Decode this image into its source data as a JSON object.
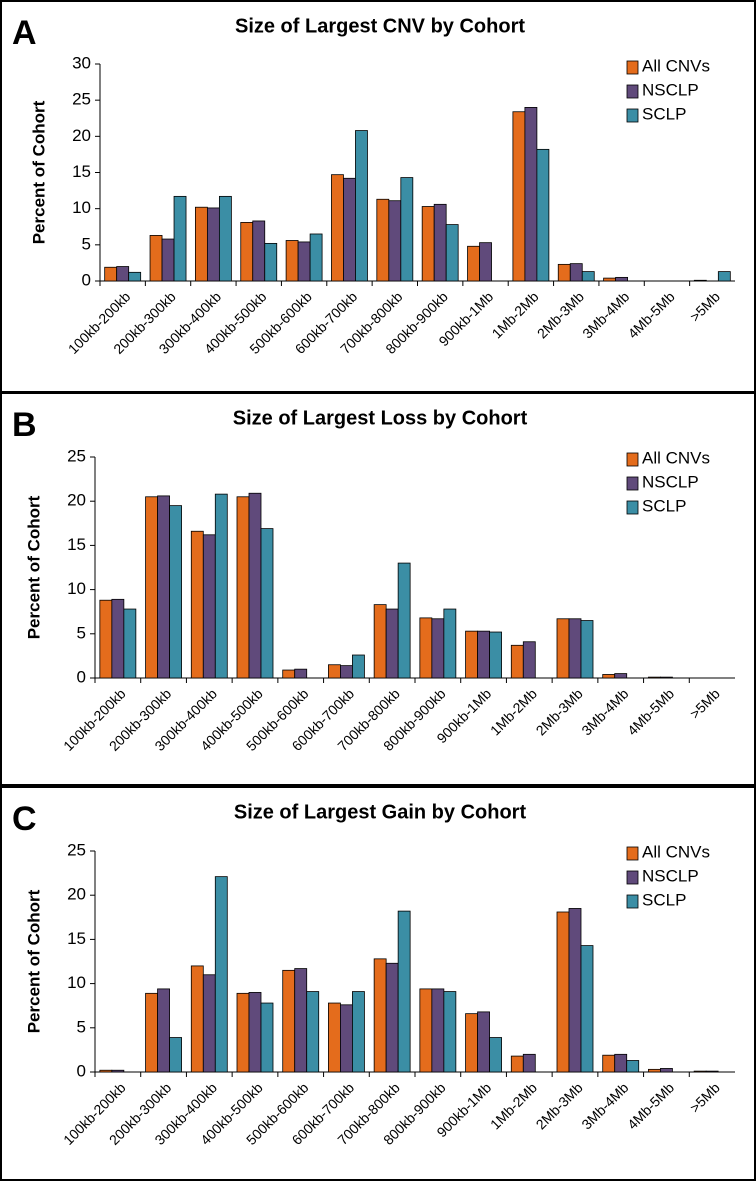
{
  "chart_data": [
    {
      "type": "bar",
      "panel_label": "A",
      "title": "Size of Largest CNV by Cohort",
      "ylabel": "Percent of Cohort",
      "categories": [
        "100kb-200kb",
        "200kb-300kb",
        "300kb-400kb",
        "400kb-500kb",
        "500kb-600kb",
        "600kb-700kb",
        "700kb-800kb",
        "800kb-900kb",
        "900kb-1Mb",
        "1Mb-2Mb",
        "2Mb-3Mb",
        "3Mb-4Mb",
        "4Mb-5Mb",
        ">5Mb"
      ],
      "series": [
        {
          "name": "All CNVs",
          "color": "#e46c1c",
          "values": [
            1.9,
            6.3,
            10.2,
            8.1,
            5.6,
            14.7,
            11.3,
            10.3,
            4.8,
            23.4,
            2.3,
            0.4,
            0,
            0.1
          ]
        },
        {
          "name": "NSCLP",
          "color": "#604a7b",
          "values": [
            2.0,
            5.8,
            10.1,
            8.3,
            5.4,
            14.2,
            11.1,
            10.6,
            5.3,
            24.0,
            2.4,
            0.5,
            0,
            0
          ]
        },
        {
          "name": "SCLP",
          "color": "#3b8ea5",
          "values": [
            1.2,
            11.7,
            11.7,
            5.2,
            6.5,
            20.8,
            14.3,
            7.8,
            0,
            18.2,
            1.3,
            0,
            0,
            1.3
          ]
        }
      ],
      "ylim": [
        0,
        30
      ],
      "yticks": [
        0,
        5,
        10,
        15,
        20,
        25,
        30
      ],
      "legend": "upper right"
    },
    {
      "type": "bar",
      "panel_label": "B",
      "title": "Size of Largest Loss by Cohort",
      "ylabel": "Percent of Cohort",
      "categories": [
        "100kb-200kb",
        "200kb-300kb",
        "300kb-400kb",
        "400kb-500kb",
        "500kb-600kb",
        "600kb-700kb",
        "700kb-800kb",
        "800kb-900kb",
        "900kb-1Mb",
        "1Mb-2Mb",
        "2Mb-3Mb",
        "3Mb-4Mb",
        "4Mb-5Mb",
        ">5Mb"
      ],
      "series": [
        {
          "name": "All CNVs",
          "color": "#e46c1c",
          "values": [
            8.8,
            20.5,
            16.6,
            20.5,
            0.9,
            1.5,
            8.3,
            6.8,
            5.3,
            3.7,
            6.7,
            0.4,
            0.1,
            0
          ]
        },
        {
          "name": "NSCLP",
          "color": "#604a7b",
          "values": [
            8.9,
            20.6,
            16.2,
            20.9,
            1.0,
            1.4,
            7.8,
            6.7,
            5.3,
            4.1,
            6.7,
            0.5,
            0.1,
            0
          ]
        },
        {
          "name": "SCLP",
          "color": "#3b8ea5",
          "values": [
            7.8,
            19.5,
            20.8,
            16.9,
            0,
            2.6,
            13.0,
            7.8,
            5.2,
            0,
            6.5,
            0,
            0,
            0
          ]
        }
      ],
      "ylim": [
        0,
        25
      ],
      "yticks": [
        0,
        5,
        10,
        15,
        20,
        25
      ],
      "legend": "upper right"
    },
    {
      "type": "bar",
      "panel_label": "C",
      "title": "Size of Largest Gain by Cohort",
      "ylabel": "Percent of Cohort",
      "categories": [
        "100kb-200kb",
        "200kb-300kb",
        "300kb-400kb",
        "400kb-500kb",
        "500kb-600kb",
        "600kb-700kb",
        "700kb-800kb",
        "800kb-900kb",
        "900kb-1Mb",
        "1Mb-2Mb",
        "2Mb-3Mb",
        "3Mb-4Mb",
        "4Mb-5Mb",
        ">5Mb"
      ],
      "series": [
        {
          "name": "All CNVs",
          "color": "#e46c1c",
          "values": [
            0.2,
            8.9,
            12.0,
            8.9,
            11.5,
            7.8,
            12.8,
            9.4,
            6.6,
            1.8,
            18.1,
            1.9,
            0.3,
            0.1
          ]
        },
        {
          "name": "NSCLP",
          "color": "#604a7b",
          "values": [
            0.2,
            9.4,
            11.0,
            9.0,
            11.7,
            7.6,
            12.3,
            9.4,
            6.8,
            2.0,
            18.5,
            2.0,
            0.4,
            0.1
          ]
        },
        {
          "name": "SCLP",
          "color": "#3b8ea5",
          "values": [
            0,
            3.9,
            22.1,
            7.8,
            9.1,
            9.1,
            18.2,
            9.1,
            3.9,
            0,
            14.3,
            1.3,
            0,
            0
          ]
        }
      ],
      "ylim": [
        0,
        25
      ],
      "yticks": [
        0,
        5,
        10,
        15,
        20,
        25
      ],
      "legend": "upper right"
    }
  ]
}
